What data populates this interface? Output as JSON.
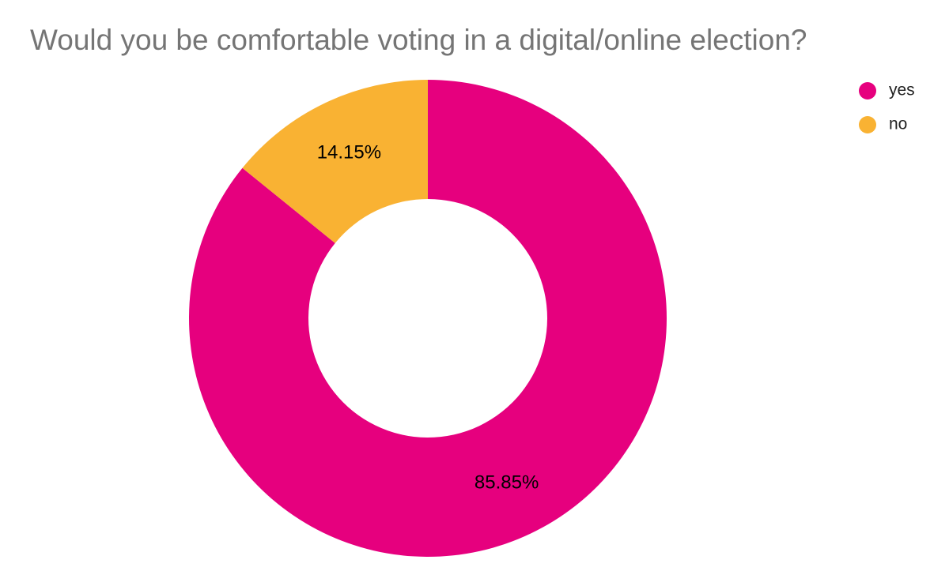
{
  "chart_data": {
    "type": "pie",
    "donut": true,
    "title": "Would you be comfortable voting in a digital/online election?",
    "slices": [
      {
        "label": "yes",
        "value": 85.85,
        "display": "85.85%",
        "color": "#E6007E"
      },
      {
        "label": "no",
        "value": 14.15,
        "display": "14.15%",
        "color": "#F9B233"
      }
    ],
    "legend": {
      "position": "top-right",
      "entries": [
        "yes",
        "no"
      ]
    }
  }
}
